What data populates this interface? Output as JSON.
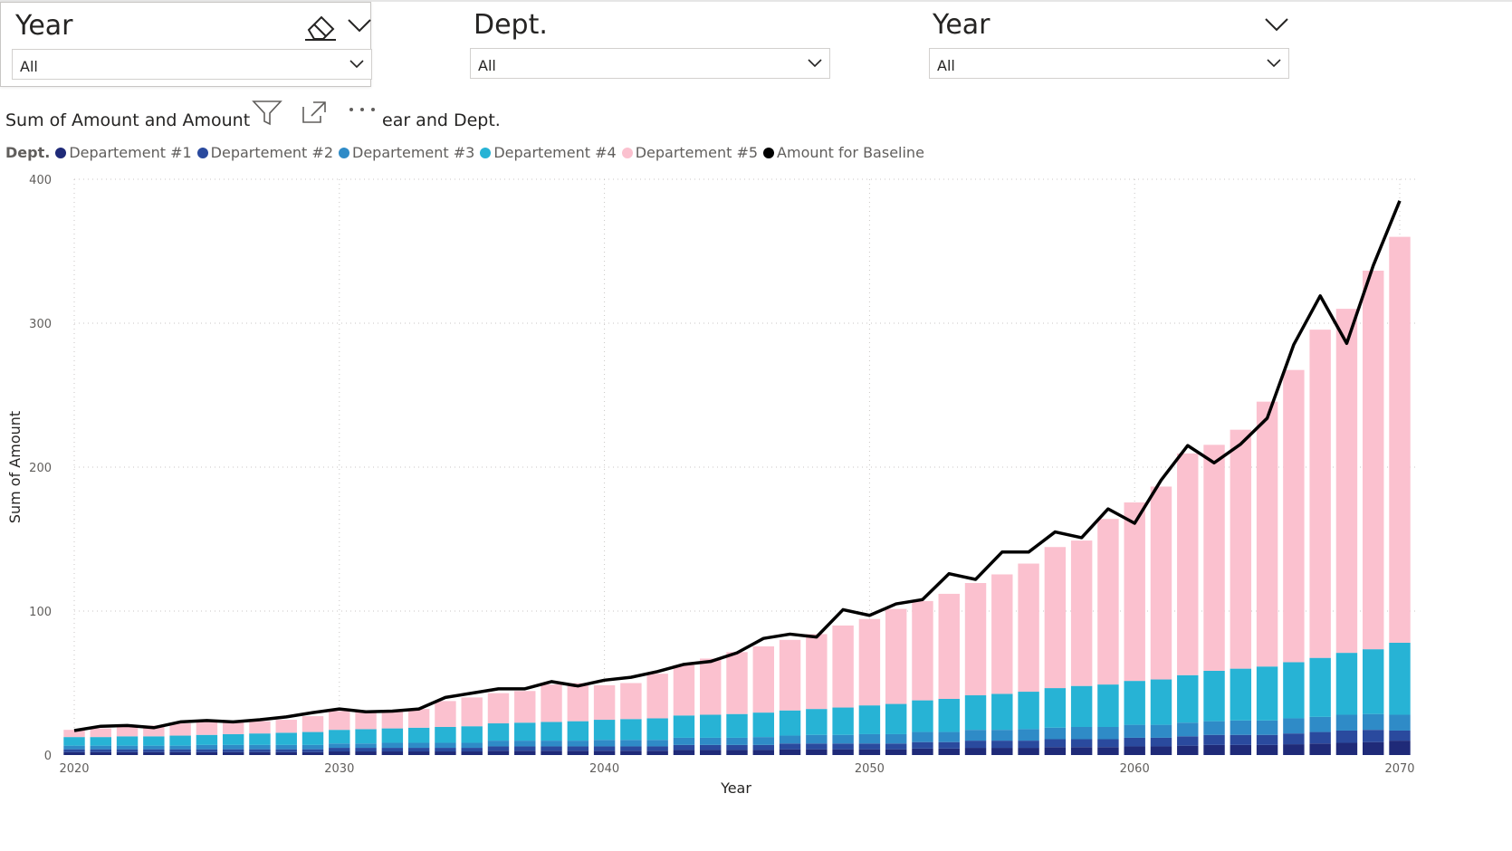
{
  "slicers": [
    {
      "title": "Year",
      "value": "All"
    },
    {
      "title": "Dept.",
      "value": "All"
    },
    {
      "title": "Year",
      "value": "All"
    }
  ],
  "chart_title": "Sum of Amount and Amount f",
  "chart_title_tail": "ear and Dept.",
  "chart_data": {
    "type": "bar",
    "stacked": true,
    "xlabel": "Year",
    "ylabel": "Sum of Amount",
    "ylim": [
      0,
      400
    ],
    "yticks": [
      0,
      100,
      200,
      300,
      400
    ],
    "xticks": [
      2020,
      2030,
      2040,
      2050,
      2060,
      2070
    ],
    "legend_title": "Dept.",
    "legend_position": "top-left",
    "grid": true,
    "years": [
      2020,
      2021,
      2022,
      2023,
      2024,
      2025,
      2026,
      2027,
      2028,
      2029,
      2030,
      2031,
      2032,
      2033,
      2034,
      2035,
      2036,
      2037,
      2038,
      2039,
      2040,
      2041,
      2042,
      2043,
      2044,
      2045,
      2046,
      2047,
      2048,
      2049,
      2050,
      2051,
      2052,
      2053,
      2054,
      2055,
      2056,
      2057,
      2058,
      2059,
      2060,
      2061,
      2062,
      2063,
      2064,
      2065,
      2066,
      2067,
      2068,
      2069,
      2070
    ],
    "series": [
      {
        "name": "Departement #1",
        "color": "#1f2a78",
        "values": [
          2,
          2,
          2,
          2,
          2,
          2,
          2,
          2,
          2,
          2,
          2.5,
          2.5,
          2.5,
          2.5,
          2.5,
          2.5,
          3,
          3,
          3,
          3,
          3,
          3,
          3,
          3.5,
          3.5,
          3.5,
          3.5,
          4,
          4,
          4,
          4,
          4,
          4.5,
          4.5,
          5,
          5,
          5,
          5.5,
          5.5,
          5.5,
          6,
          6,
          6.5,
          7,
          7,
          7,
          7.5,
          8,
          8.5,
          9,
          10
        ]
      },
      {
        "name": "Departement #2",
        "color": "#2a4a9e",
        "values": [
          2,
          2,
          2,
          2,
          2,
          2,
          2,
          2,
          2,
          2,
          2.5,
          2.5,
          2.5,
          2.5,
          2.5,
          2.5,
          3,
          3,
          3,
          3,
          3,
          3,
          3,
          3.5,
          3.5,
          3.5,
          3.5,
          4,
          4,
          4,
          4,
          4,
          4.5,
          4.5,
          5,
          5,
          5,
          5.5,
          5.5,
          5.5,
          6,
          6,
          6.5,
          7,
          7,
          7,
          7.5,
          8,
          8.5,
          8.5,
          7
        ]
      },
      {
        "name": "Departement #3",
        "color": "#2f8bc7",
        "values": [
          2.5,
          2.5,
          2.5,
          2.5,
          2.5,
          3,
          3,
          3,
          3,
          3,
          3,
          3,
          3.5,
          3.5,
          3.5,
          3.5,
          4,
          4,
          4,
          4,
          4.5,
          4.5,
          4.5,
          5,
          5,
          5,
          5.5,
          5.5,
          6,
          6,
          6.5,
          6.5,
          7,
          7,
          7.5,
          7.5,
          8,
          8,
          8.5,
          8.5,
          9,
          9,
          9.5,
          9.5,
          10,
          10,
          10.5,
          10.5,
          11,
          11,
          11
        ]
      },
      {
        "name": "Departement #4",
        "color": "#27b3d5",
        "values": [
          6,
          6,
          6.5,
          6.5,
          7,
          7,
          7.5,
          8,
          8.5,
          9,
          9.5,
          10,
          10,
          10.5,
          11,
          11.5,
          12,
          12.5,
          13,
          13.5,
          14,
          14.5,
          15,
          15.5,
          16,
          16.5,
          17,
          17.5,
          18,
          19,
          20,
          21,
          22,
          23,
          24,
          25,
          26,
          27.5,
          28.5,
          29.5,
          30.5,
          31.5,
          33,
          35,
          36,
          37.5,
          39,
          41,
          43,
          45,
          50
        ]
      },
      {
        "name": "Departement #5",
        "color": "#fbc1cf",
        "values": [
          5,
          6,
          7,
          7.5,
          8.5,
          9,
          8.5,
          8.5,
          9,
          11,
          13,
          12,
          12,
          13,
          18,
          20,
          21,
          22,
          26,
          26.5,
          24,
          25,
          31,
          35,
          39,
          43,
          46,
          49,
          52,
          57,
          60,
          66,
          69,
          73,
          78,
          83,
          89,
          98,
          101,
          115,
          124,
          134,
          154,
          157,
          166,
          184,
          203,
          228,
          239,
          263,
          282
        ]
      },
      {
        "name": "Amount for Baseline",
        "color": "#000000",
        "type": "line",
        "values": [
          17,
          20,
          20.5,
          19,
          23,
          24,
          23,
          24.5,
          26.5,
          29.5,
          32,
          30,
          30.5,
          32,
          40,
          43,
          46,
          46,
          51,
          48,
          52,
          54,
          58,
          63,
          65,
          71,
          81,
          84,
          82,
          101,
          97,
          105,
          108,
          126,
          122,
          141,
          141,
          155,
          151,
          171,
          161,
          191,
          215,
          203,
          216,
          234,
          285,
          319,
          286,
          340,
          385
        ]
      }
    ]
  }
}
